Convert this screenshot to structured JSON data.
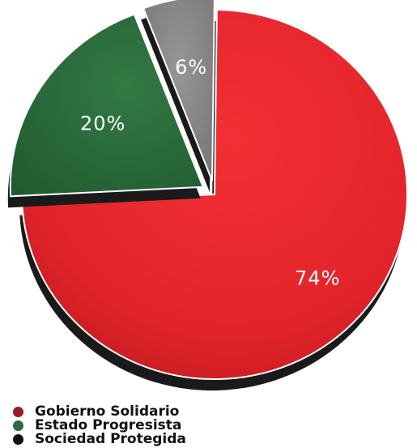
{
  "chart_data": {
    "type": "pie",
    "title": "",
    "legend_position": "bottom-left",
    "slices": [
      {
        "name": "Gobierno Solidario",
        "value": 74,
        "label": "74%",
        "color": "#e8262b",
        "exploded": false
      },
      {
        "name": "Estado Progresista",
        "value": 20,
        "label": "20%",
        "color": "#2a6b3a",
        "exploded": true
      },
      {
        "name": "Sociedad Protegida",
        "value": 6,
        "label": "6%",
        "color": "#8a8a8a",
        "exploded": true
      }
    ],
    "legend": [
      {
        "name": "Gobierno Solidario",
        "color": "#9b1c22"
      },
      {
        "name": "Estado Progresista",
        "color": "#2a6b3a"
      },
      {
        "name": "Sociedad Protegida",
        "color": "#111111"
      }
    ]
  }
}
